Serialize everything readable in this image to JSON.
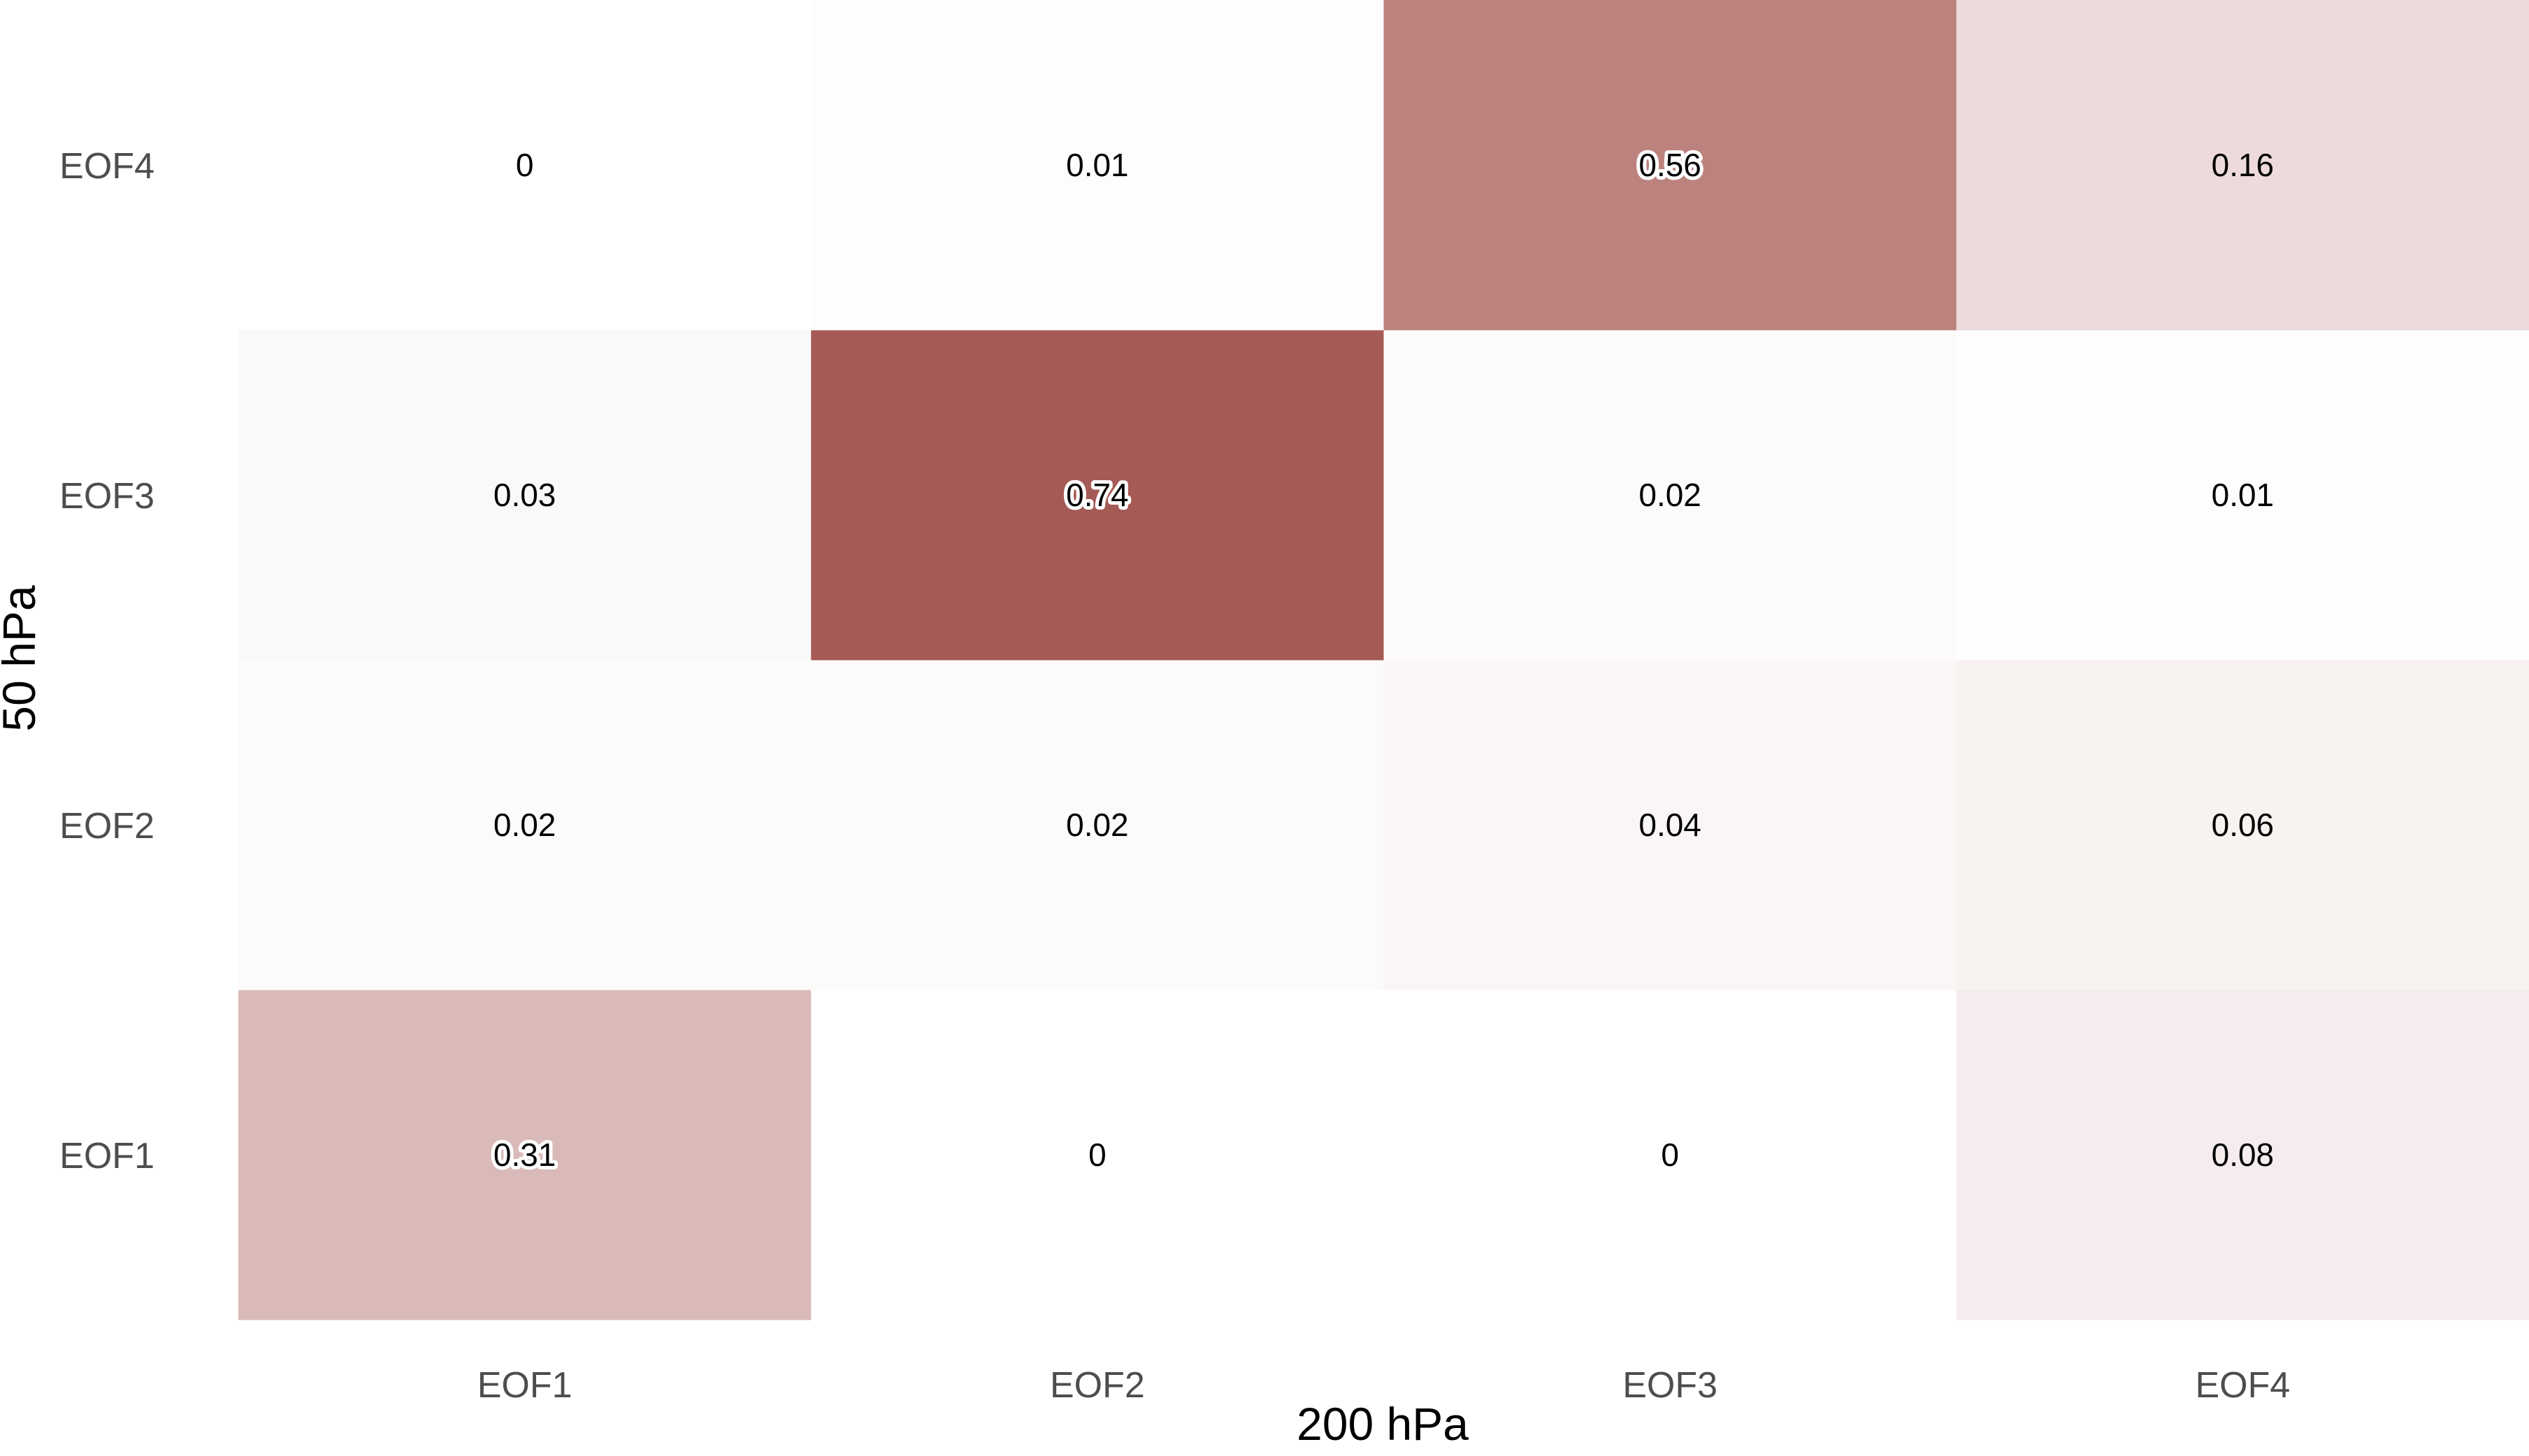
{
  "chart_data": {
    "type": "heatmap",
    "xlabel": "200 hPa",
    "ylabel": "50 hPa",
    "x_categories": [
      "EOF1",
      "EOF2",
      "EOF3",
      "EOF4"
    ],
    "y_categories": [
      "EOF1",
      "EOF2",
      "EOF3",
      "EOF4"
    ],
    "values": [
      [
        0.31,
        0,
        0,
        0.08
      ],
      [
        0.02,
        0.02,
        0.04,
        0.06
      ],
      [
        0.03,
        0.74,
        0.02,
        0.01
      ],
      [
        0,
        0.01,
        0.56,
        0.16
      ]
    ],
    "value_labels": [
      [
        "0.31",
        "0",
        "0",
        "0.08"
      ],
      [
        "0.02",
        "0.02",
        "0.04",
        "0.06"
      ],
      [
        "0.03",
        "0.74",
        "0.02",
        "0.01"
      ],
      [
        "0",
        "0.01",
        "0.56",
        "0.16"
      ]
    ],
    "color_scale": {
      "low": "#ffffff",
      "high": "#a65a55",
      "range": [
        0,
        0.74
      ]
    },
    "grid": false,
    "legend": "none"
  }
}
